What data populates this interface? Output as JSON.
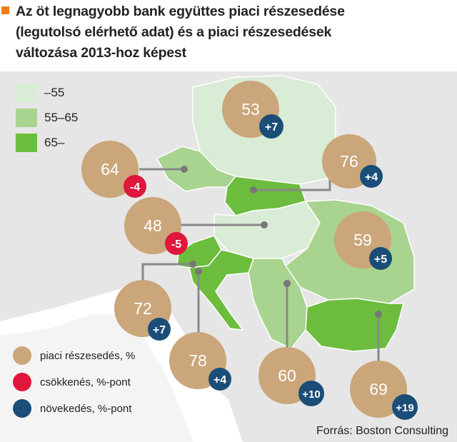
{
  "title_lines": [
    "Az öt legnagyobb bank együttes piaci részesedése",
    "(legutolsó elérhető adat) és a piaci részesedések",
    "változása 2013-hoz képest"
  ],
  "legend": [
    {
      "label": "–55",
      "color": "#d9ecd6"
    },
    {
      "label": "55–65",
      "color": "#a8d48f"
    },
    {
      "label": "65–",
      "color": "#6cbd3d"
    }
  ],
  "key": [
    {
      "label": "piaci  részesedés, %",
      "color": "#caa67a"
    },
    {
      "label": "csökkenés, %-pont",
      "color": "#e0173c"
    },
    {
      "label": "növekedés, %-pont",
      "color": "#1a4e78"
    }
  ],
  "source": "Forrás: Boston Consulting",
  "countries": [
    {
      "id": "poland",
      "share": "53",
      "change": "+7",
      "direction": "increase",
      "band": "low"
    },
    {
      "id": "czech",
      "share": "64",
      "change": "-4",
      "direction": "decrease",
      "band": "mid"
    },
    {
      "id": "slovakia",
      "share": "76",
      "change": "+4",
      "direction": "increase",
      "band": "high"
    },
    {
      "id": "hungary",
      "share": "48",
      "change": "-5",
      "direction": "decrease",
      "band": "low"
    },
    {
      "id": "romania",
      "share": "59",
      "change": "+5",
      "direction": "increase",
      "band": "mid"
    },
    {
      "id": "slovenia",
      "share": "72",
      "change": "+7",
      "direction": "increase",
      "band": "high"
    },
    {
      "id": "croatia",
      "share": "78",
      "change": "+4",
      "direction": "increase",
      "band": "high"
    },
    {
      "id": "serbia",
      "share": "60",
      "change": "+10",
      "direction": "increase",
      "band": "mid"
    },
    {
      "id": "bulgaria",
      "share": "69",
      "change": "+19",
      "direction": "increase",
      "band": "high"
    }
  ]
}
